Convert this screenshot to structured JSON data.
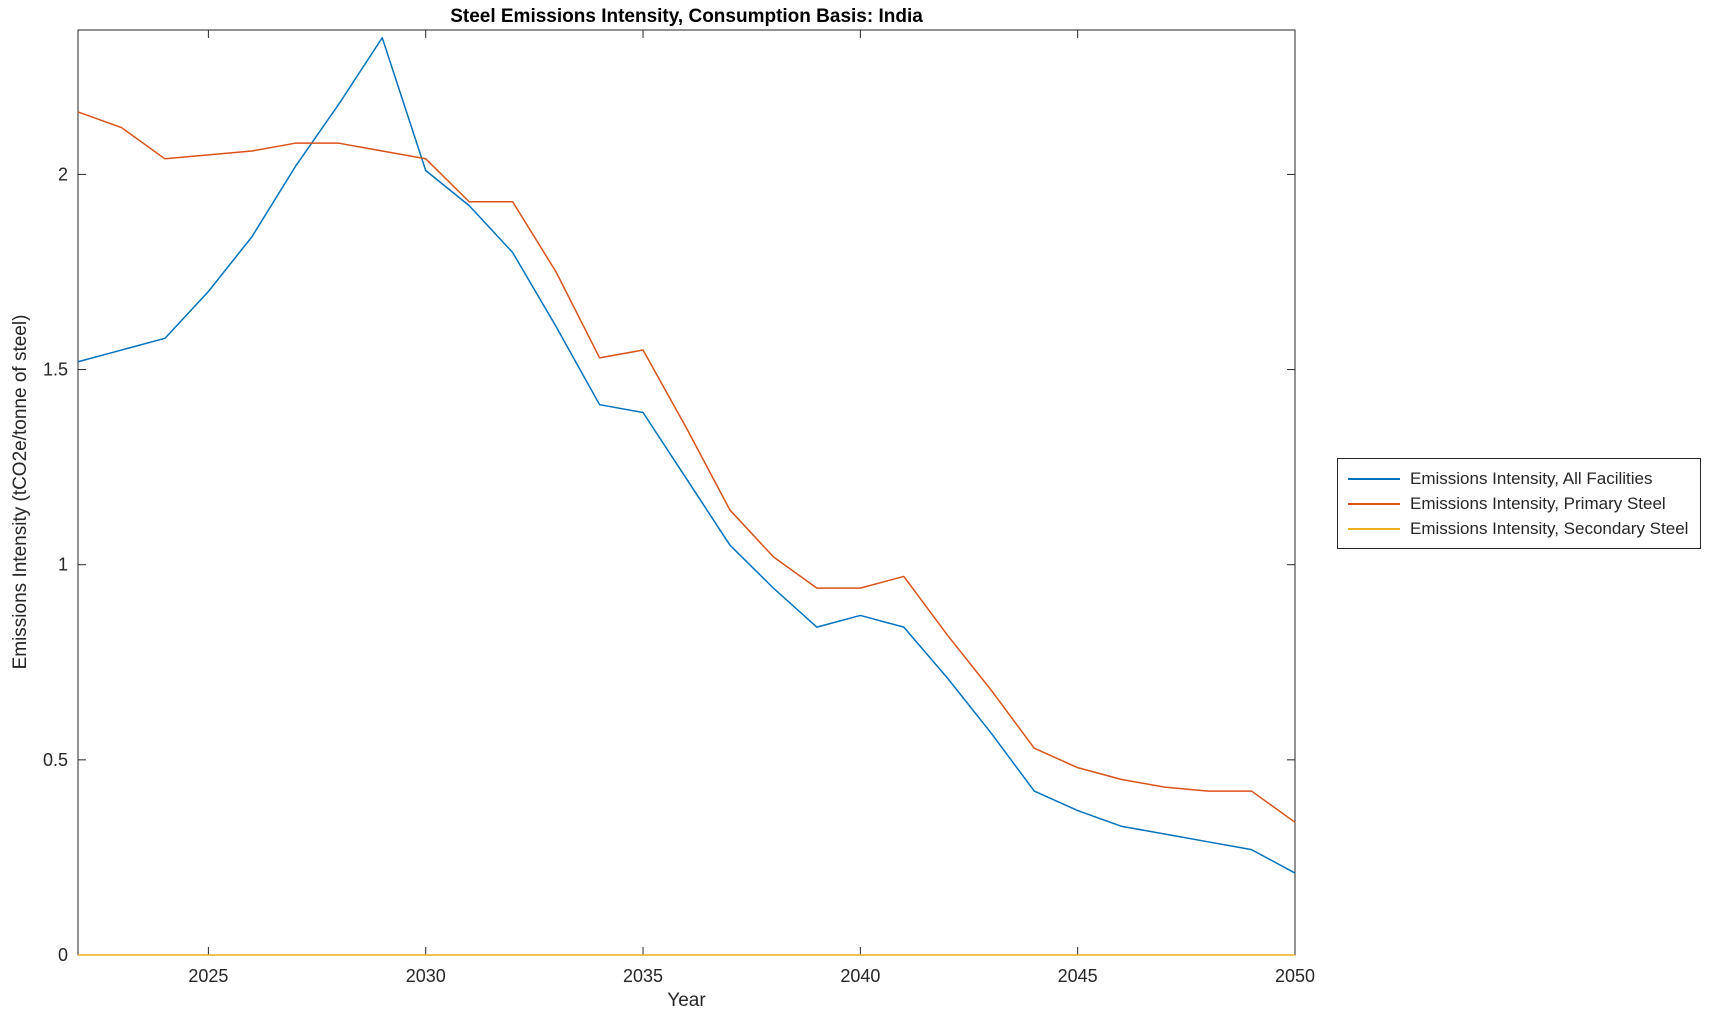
{
  "chart_data": {
    "type": "line",
    "title": "Steel Emissions Intensity, Consumption Basis: India",
    "xlabel": "Year",
    "ylabel": "Emissions Intensity (tCO2e/tonne of steel)",
    "xlim": [
      2022,
      2050
    ],
    "ylim": [
      0,
      2.37
    ],
    "xticks": [
      2025,
      2030,
      2035,
      2040,
      2045,
      2050
    ],
    "yticks": [
      0,
      0.5,
      1,
      1.5,
      2
    ],
    "grid": false,
    "legend_position": "right-outside",
    "axis_color": "#262626",
    "x": [
      2022,
      2023,
      2024,
      2025,
      2026,
      2027,
      2028,
      2029,
      2030,
      2031,
      2032,
      2033,
      2034,
      2035,
      2036,
      2037,
      2038,
      2039,
      2040,
      2041,
      2042,
      2043,
      2044,
      2045,
      2046,
      2047,
      2048,
      2049,
      2050
    ],
    "series": [
      {
        "name": "Emissions Intensity, All Facilities",
        "color": "#0072BD",
        "values": [
          1.52,
          1.55,
          1.58,
          1.7,
          1.84,
          2.02,
          2.18,
          2.35,
          2.01,
          1.92,
          1.8,
          1.61,
          1.41,
          1.39,
          1.22,
          1.05,
          0.94,
          0.84,
          0.87,
          0.84,
          0.71,
          0.57,
          0.42,
          0.37,
          0.33,
          0.31,
          0.29,
          0.27,
          0.21
        ]
      },
      {
        "name": "Emissions Intensity, Primary Steel",
        "color": "#D95319",
        "values": [
          2.16,
          2.12,
          2.04,
          2.05,
          2.06,
          2.08,
          2.08,
          2.06,
          2.04,
          1.93,
          1.93,
          1.75,
          1.53,
          1.55,
          1.35,
          1.14,
          1.02,
          0.94,
          0.94,
          0.97,
          0.82,
          0.68,
          0.53,
          0.48,
          0.45,
          0.43,
          0.42,
          0.42,
          0.34
        ]
      },
      {
        "name": "Emissions Intensity, Secondary Steel",
        "color": "#EDB120",
        "values": [
          0,
          0,
          0,
          0,
          0,
          0,
          0,
          0,
          0,
          0,
          0,
          0,
          0,
          0,
          0,
          0,
          0,
          0,
          0,
          0,
          0,
          0,
          0,
          0,
          0,
          0,
          0,
          0,
          0
        ]
      }
    ]
  }
}
